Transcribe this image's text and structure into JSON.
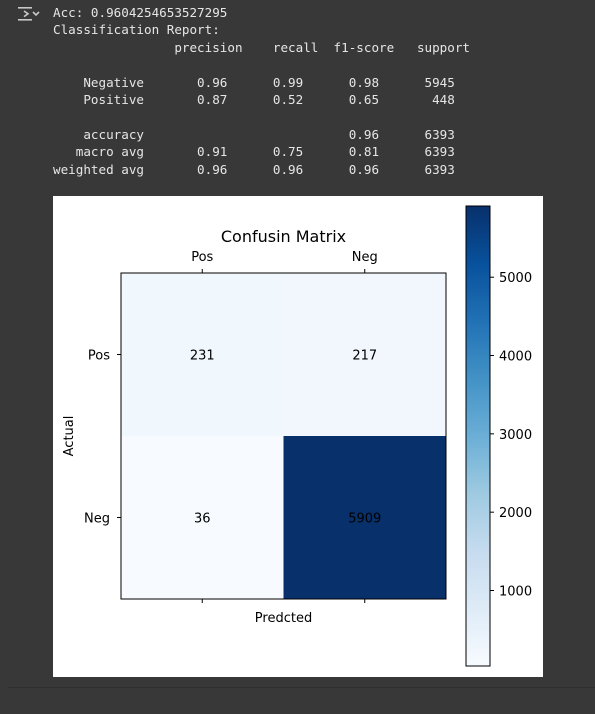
{
  "console": {
    "accuracy_line": "Acc: 0.9604254653527295",
    "report_title": "Classification Report:",
    "report_header": "                precision    recall  f1-score   support",
    "report_rows": [
      "",
      "    Negative       0.96      0.99      0.98      5945",
      "    Positive       0.87      0.52      0.65       448",
      "",
      "    accuracy                           0.96      6393",
      "   macro avg       0.91      0.75      0.81      6393",
      "weighted avg       0.96      0.96      0.96      6393"
    ]
  },
  "icons": {
    "output": "output-toggle-icon"
  },
  "chart_data": {
    "type": "heatmap",
    "title": "Confusin Matrix",
    "xlabel": "Predcted",
    "ylabel": "Actual",
    "x_categories": [
      "Pos",
      "Neg"
    ],
    "y_categories": [
      "Pos",
      "Neg"
    ],
    "values": [
      [
        231,
        217
      ],
      [
        36,
        5909
      ]
    ],
    "colormap": "Blues",
    "colorbar": {
      "min": 36,
      "max": 5909,
      "ticks": [
        1000,
        2000,
        3000,
        4000,
        5000
      ]
    },
    "x_tick_position": "top"
  }
}
